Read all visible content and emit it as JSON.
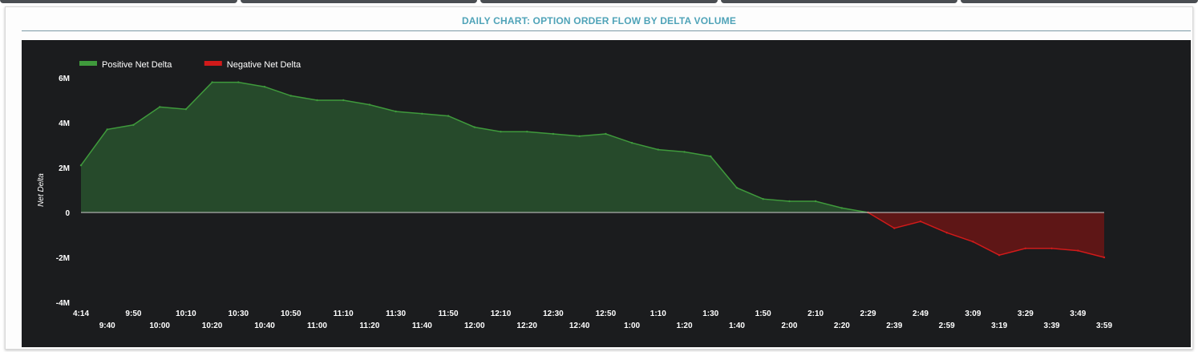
{
  "panel": {
    "title": "DAILY CHART: OPTION ORDER FLOW BY DELTA VOLUME"
  },
  "colors": {
    "title": "#4fa3b8",
    "background": "#1b1c1e",
    "positive_fill": "#264a2b",
    "positive_line": "#3f9a3c",
    "negative_fill": "#5e1616",
    "negative_line": "#d11a1a",
    "zero_line": "#cfcfcf",
    "text": "#ffffff"
  },
  "chart_data": {
    "type": "area",
    "title": "DAILY CHART: OPTION ORDER FLOW BY DELTA VOLUME",
    "ylabel": "Net Delta",
    "xlabel": "",
    "ylim": [
      -4000000,
      6000000
    ],
    "y_ticks": [
      {
        "value": 6000000,
        "label": "6M"
      },
      {
        "value": 4000000,
        "label": "4M"
      },
      {
        "value": 2000000,
        "label": "2M"
      },
      {
        "value": 0,
        "label": "0"
      },
      {
        "value": -2000000,
        "label": "-2M"
      },
      {
        "value": -4000000,
        "label": "-4M"
      }
    ],
    "x_ticks": [
      "4:14",
      "9:40",
      "9:50",
      "10:00",
      "10:10",
      "10:20",
      "10:30",
      "10:40",
      "10:50",
      "11:00",
      "11:10",
      "11:20",
      "11:30",
      "11:40",
      "11:50",
      "12:00",
      "12:10",
      "12:20",
      "12:30",
      "12:40",
      "12:50",
      "1:00",
      "1:10",
      "1:20",
      "1:30",
      "1:40",
      "1:50",
      "2:00",
      "2:10",
      "2:20",
      "2:29",
      "2:39",
      "2:49",
      "2:59",
      "3:09",
      "3:19",
      "3:29",
      "3:39",
      "3:49",
      "3:59"
    ],
    "legend_position": "top-left",
    "grid": false,
    "series": [
      {
        "name": "Positive Net Delta",
        "color": "#3f9a3c",
        "x": [
          "4:14",
          "9:40",
          "9:50",
          "10:00",
          "10:10",
          "10:20",
          "10:30",
          "10:40",
          "10:50",
          "11:00",
          "11:10",
          "11:20",
          "11:30",
          "11:40",
          "11:50",
          "12:00",
          "12:10",
          "12:20",
          "12:30",
          "12:40",
          "12:50",
          "1:00",
          "1:10",
          "1:20",
          "1:30",
          "1:40",
          "1:50",
          "2:00",
          "2:10",
          "2:20",
          "2:29"
        ],
        "values": [
          2100000,
          3700000,
          3900000,
          4700000,
          4600000,
          5800000,
          5800000,
          5600000,
          5200000,
          5000000,
          5000000,
          4800000,
          4500000,
          4400000,
          4300000,
          3800000,
          3600000,
          3600000,
          3500000,
          3400000,
          3500000,
          3100000,
          2800000,
          2700000,
          2500000,
          1100000,
          600000,
          500000,
          500000,
          200000,
          0
        ]
      },
      {
        "name": "Negative Net Delta",
        "color": "#d11a1a",
        "x": [
          "2:29",
          "2:39",
          "2:49",
          "2:59",
          "3:09",
          "3:19",
          "3:29",
          "3:39",
          "3:49",
          "3:59"
        ],
        "values": [
          0,
          -700000,
          -400000,
          -900000,
          -1300000,
          -1900000,
          -1600000,
          -1600000,
          -1700000,
          -2000000
        ]
      }
    ]
  }
}
